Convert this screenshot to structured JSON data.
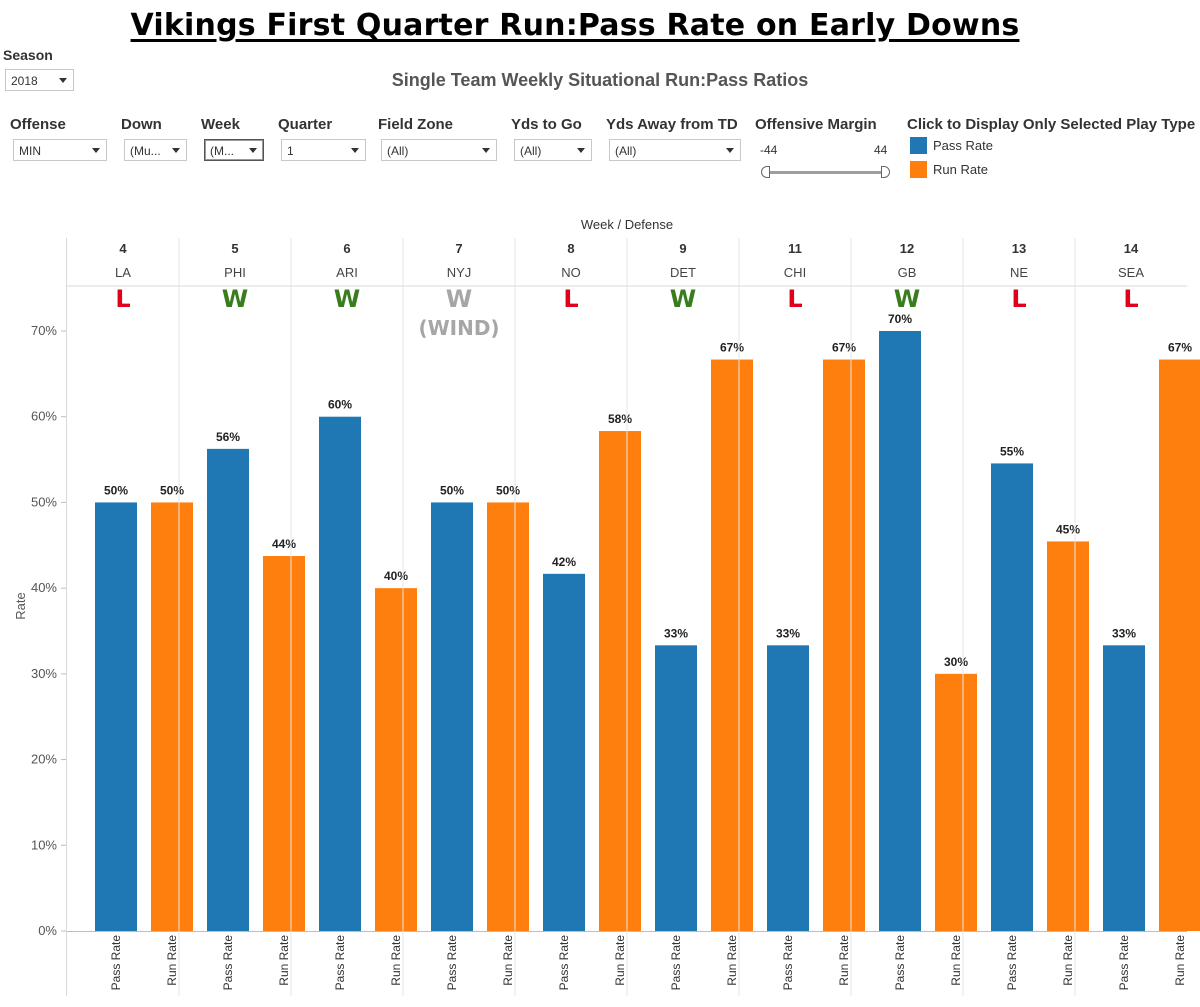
{
  "title": "Vikings First Quarter Run:Pass Rate on Early Downs",
  "subtitle": "Single Team Weekly Situational Run:Pass Ratios",
  "season": {
    "label": "Season",
    "value": "2018"
  },
  "filters": [
    {
      "label": "Offense",
      "value": "MIN"
    },
    {
      "label": "Down",
      "value": "(Mu..."
    },
    {
      "label": "Week",
      "value": "(M..."
    },
    {
      "label": "Quarter",
      "value": "1"
    },
    {
      "label": "Field Zone",
      "value": "(All)"
    },
    {
      "label": "Yds to Go",
      "value": "(All)"
    },
    {
      "label": "Yds Away from TD",
      "value": "(All)"
    }
  ],
  "margin": {
    "label": "Offensive Margin",
    "min": "-44",
    "max": "44"
  },
  "legend": {
    "title": "Click to Display Only Selected Play Type",
    "items": [
      {
        "label": "Pass Rate",
        "color": "#1f77b4"
      },
      {
        "label": "Run Rate",
        "color": "#ff7f0e"
      }
    ]
  },
  "colors": {
    "pass": "#1f77b4",
    "run": "#ff7f0e",
    "win": "#3a7d1e",
    "loss": "#e0001a",
    "wind": "#a6a6a6"
  },
  "chart_data": {
    "type": "bar",
    "header": "Week  /  Defense",
    "ylabel": "Rate",
    "ylim": [
      0,
      0.75
    ],
    "yticks": [
      "0%",
      "10%",
      "20%",
      "30%",
      "40%",
      "50%",
      "60%",
      "70%"
    ],
    "grid": false,
    "categories": [
      "Pass Rate",
      "Run Rate"
    ],
    "groups": [
      {
        "week": "4",
        "team": "LA",
        "result": "L",
        "values": [
          0.5,
          0.5
        ],
        "labels": [
          "50%",
          "50%"
        ]
      },
      {
        "week": "5",
        "team": "PHI",
        "result": "W",
        "values": [
          0.5625,
          0.4375
        ],
        "labels": [
          "56%",
          "44%"
        ]
      },
      {
        "week": "6",
        "team": "ARI",
        "result": "W",
        "values": [
          0.6,
          0.4
        ],
        "labels": [
          "60%",
          "40%"
        ]
      },
      {
        "week": "7",
        "team": "NYJ",
        "result": "W",
        "note": "(WIND)",
        "values": [
          0.5,
          0.5
        ],
        "labels": [
          "50%",
          "50%"
        ]
      },
      {
        "week": "8",
        "team": "NO",
        "result": "L",
        "values": [
          0.4167,
          0.5833
        ],
        "labels": [
          "42%",
          "58%"
        ]
      },
      {
        "week": "9",
        "team": "DET",
        "result": "W",
        "values": [
          0.3333,
          0.6667
        ],
        "labels": [
          "33%",
          "67%"
        ]
      },
      {
        "week": "11",
        "team": "CHI",
        "result": "L",
        "values": [
          0.3333,
          0.6667
        ],
        "labels": [
          "33%",
          "67%"
        ]
      },
      {
        "week": "12",
        "team": "GB",
        "result": "W",
        "values": [
          0.7,
          0.3
        ],
        "labels": [
          "70%",
          "30%"
        ]
      },
      {
        "week": "13",
        "team": "NE",
        "result": "L",
        "values": [
          0.5455,
          0.4545
        ],
        "labels": [
          "55%",
          "45%"
        ]
      },
      {
        "week": "14",
        "team": "SEA",
        "result": "L",
        "values": [
          0.3333,
          0.6667
        ],
        "labels": [
          "33%",
          "67%"
        ]
      }
    ]
  }
}
